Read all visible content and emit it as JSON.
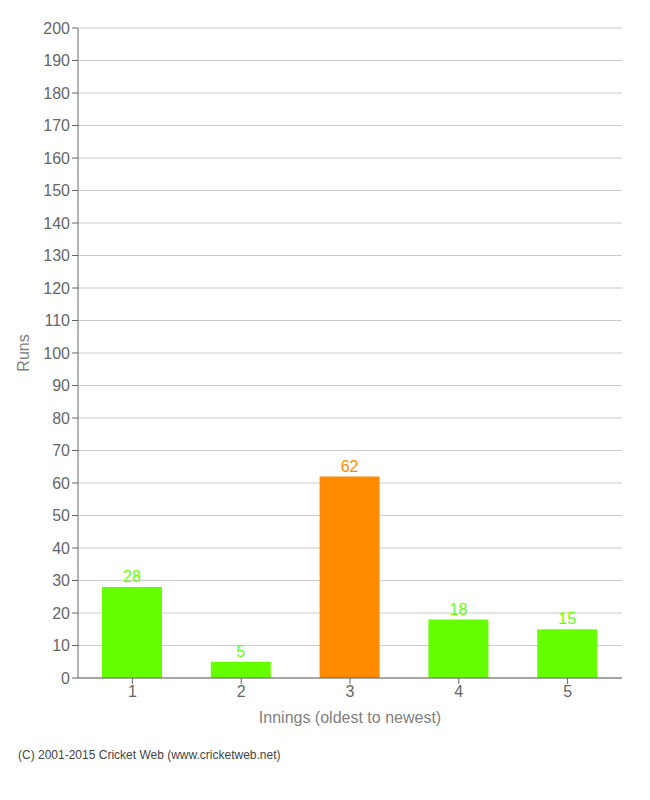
{
  "chart_data": {
    "type": "bar",
    "xlabel": "Innings (oldest to newest)",
    "ylabel": "Runs",
    "categories": [
      "1",
      "2",
      "3",
      "4",
      "5"
    ],
    "values": [
      28,
      5,
      62,
      18,
      15
    ],
    "colors": [
      "#66ff00",
      "#66ff00",
      "#ff8c00",
      "#66ff00",
      "#66ff00"
    ],
    "ylim": [
      0,
      200
    ],
    "yticks": [
      0,
      10,
      20,
      30,
      40,
      50,
      60,
      70,
      80,
      90,
      100,
      110,
      120,
      130,
      140,
      150,
      160,
      170,
      180,
      190,
      200
    ],
    "grid": true,
    "data_labels": true,
    "annotations": [
      "(C) 2001-2015 Cricket Web (www.cricketweb.net)"
    ]
  }
}
